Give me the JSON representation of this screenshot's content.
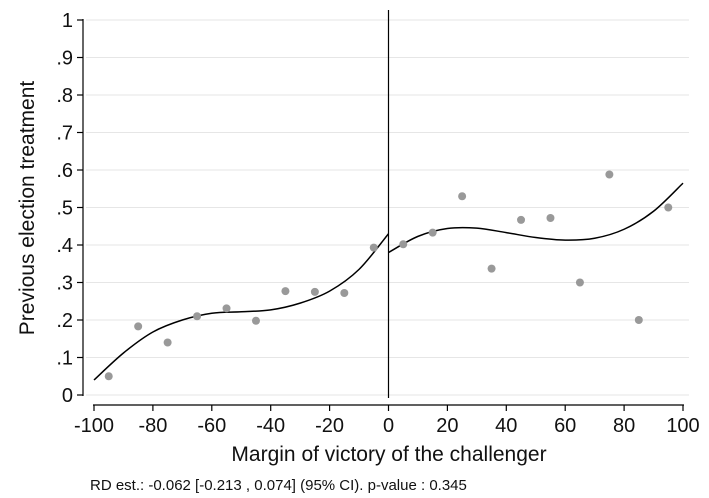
{
  "chart_data": {
    "type": "scatter",
    "xlabel": "Margin of victory of the challenger",
    "ylabel": "Previous election treatment",
    "note": "RD est.: -0.062 [-0.213 , 0.074] (95% CI). p-value : 0.345",
    "xlim": [
      -100,
      100
    ],
    "ylim": [
      0,
      1
    ],
    "x_ticks": [
      -100,
      -80,
      -60,
      -40,
      -20,
      0,
      20,
      40,
      60,
      80,
      100
    ],
    "x_tick_labels": [
      "-100",
      "-80",
      "-60",
      "-40",
      "-20",
      "0",
      "20",
      "40",
      "60",
      "80",
      "100"
    ],
    "y_ticks": [
      0,
      0.1,
      0.2,
      0.3,
      0.4,
      0.5,
      0.6,
      0.7,
      0.8,
      0.9,
      1
    ],
    "y_tick_labels": [
      "0",
      ".1",
      ".2",
      ".3",
      ".4",
      ".5",
      ".6",
      ".7",
      ".8",
      ".9",
      "1"
    ],
    "grid": "horizontal",
    "cutoff": 0,
    "points": [
      {
        "x": -95,
        "y": 0.05
      },
      {
        "x": -85,
        "y": 0.183
      },
      {
        "x": -75,
        "y": 0.14
      },
      {
        "x": -65,
        "y": 0.21
      },
      {
        "x": -55,
        "y": 0.231
      },
      {
        "x": -45,
        "y": 0.198
      },
      {
        "x": -35,
        "y": 0.277
      },
      {
        "x": -25,
        "y": 0.275
      },
      {
        "x": -15,
        "y": 0.272
      },
      {
        "x": -5,
        "y": 0.393
      },
      {
        "x": 5,
        "y": 0.402
      },
      {
        "x": 15,
        "y": 0.433
      },
      {
        "x": 25,
        "y": 0.53
      },
      {
        "x": 35,
        "y": 0.337
      },
      {
        "x": 45,
        "y": 0.467
      },
      {
        "x": 55,
        "y": 0.472
      },
      {
        "x": 65,
        "y": 0.3
      },
      {
        "x": 75,
        "y": 0.588
      },
      {
        "x": 85,
        "y": 0.2
      },
      {
        "x": 95,
        "y": 0.5
      }
    ],
    "fit_left": [
      {
        "x": -100,
        "y": 0.04
      },
      {
        "x": -90,
        "y": 0.112
      },
      {
        "x": -80,
        "y": 0.168
      },
      {
        "x": -70,
        "y": 0.2
      },
      {
        "x": -60,
        "y": 0.218
      },
      {
        "x": -50,
        "y": 0.222
      },
      {
        "x": -40,
        "y": 0.227
      },
      {
        "x": -30,
        "y": 0.245
      },
      {
        "x": -20,
        "y": 0.277
      },
      {
        "x": -10,
        "y": 0.335
      },
      {
        "x": 0,
        "y": 0.43
      }
    ],
    "fit_right": [
      {
        "x": 0,
        "y": 0.38
      },
      {
        "x": 10,
        "y": 0.423
      },
      {
        "x": 20,
        "y": 0.444
      },
      {
        "x": 30,
        "y": 0.445
      },
      {
        "x": 40,
        "y": 0.433
      },
      {
        "x": 50,
        "y": 0.42
      },
      {
        "x": 60,
        "y": 0.413
      },
      {
        "x": 70,
        "y": 0.418
      },
      {
        "x": 80,
        "y": 0.442
      },
      {
        "x": 90,
        "y": 0.49
      },
      {
        "x": 100,
        "y": 0.565
      }
    ],
    "colors": {
      "points": "#999999",
      "fit": "#000000",
      "grid": "#e6e6e6",
      "axis": "#000000"
    }
  }
}
